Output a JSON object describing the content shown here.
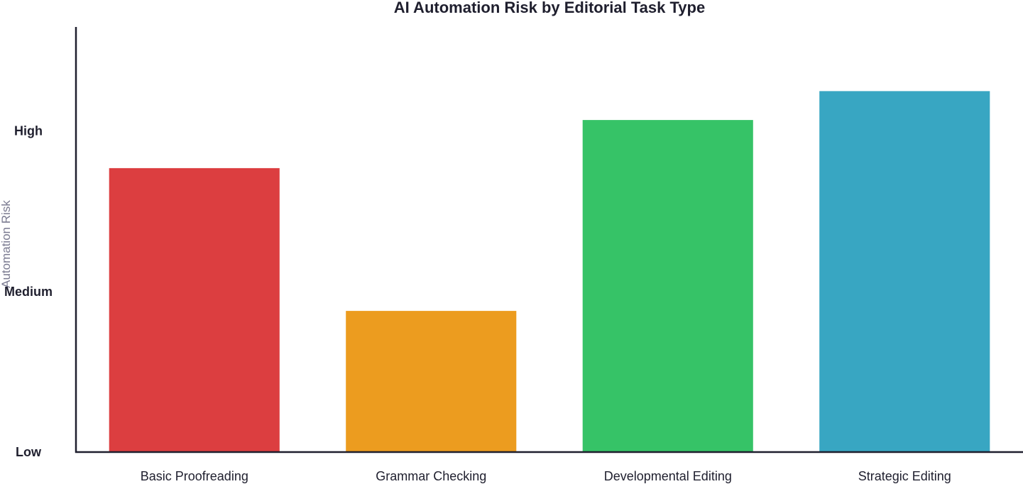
{
  "chart_data": {
    "type": "bar",
    "title": "AI Automation Risk by Editorial Task Type",
    "xlabel": "",
    "ylabel": "Automation Risk",
    "categories": [
      "Basic Proofreading",
      "Grammar Checking",
      "Developmental Editing",
      "Strategic Editing"
    ],
    "values": [
      1.77,
      0.88,
      2.07,
      2.25
    ],
    "colors": [
      "#dc3e40",
      "#ec9c1f",
      "#36c367",
      "#38a6c2"
    ],
    "yticks": [
      {
        "value": 0,
        "label": "Low"
      },
      {
        "value": 1,
        "label": "Medium"
      },
      {
        "value": 2,
        "label": "High"
      }
    ],
    "ylim": [
      0,
      2.65
    ],
    "grid": false,
    "legend": "none"
  }
}
